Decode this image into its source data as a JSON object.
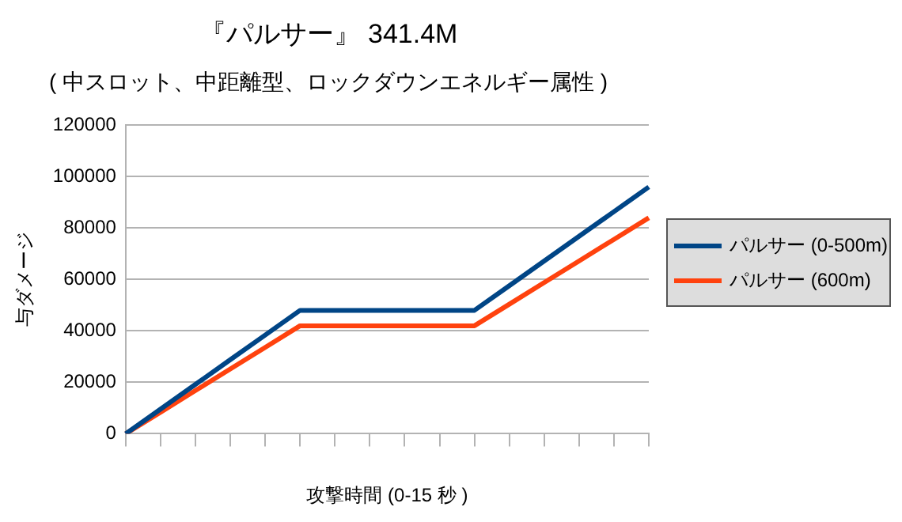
{
  "chart_data": {
    "type": "line",
    "title": "『パルサー』 341.4M",
    "subtitle": "( 中スロット、中距離型、ロックダウンエネルギー属性 )",
    "xlabel": "攻撃時間 (0-15 秒 )",
    "ylabel": "与ダメージ",
    "categories": [
      null,
      null,
      null,
      null,
      null,
      null,
      null,
      null,
      null,
      null,
      null,
      null,
      null,
      null,
      null,
      null
    ],
    "series": [
      {
        "name": "パルサー (0-500m)",
        "color": "#004586",
        "values": [
          0,
          9600,
          19200,
          28800,
          38400,
          48000,
          48000,
          48000,
          48000,
          48000,
          48000,
          57600,
          67200,
          76800,
          86400,
          96000
        ]
      },
      {
        "name": "パルサー (600m)",
        "color": "#ff420e",
        "values": [
          0,
          8400,
          16800,
          25200,
          33600,
          42000,
          42000,
          42000,
          42000,
          42000,
          42000,
          50400,
          58800,
          67200,
          75600,
          84000
        ]
      }
    ],
    "ylim": [
      0,
      120000
    ],
    "yticks": [
      0,
      20000,
      40000,
      60000,
      80000,
      100000,
      120000
    ],
    "grid": "y",
    "legend": "right",
    "marker": "none",
    "line_style": "solid"
  }
}
